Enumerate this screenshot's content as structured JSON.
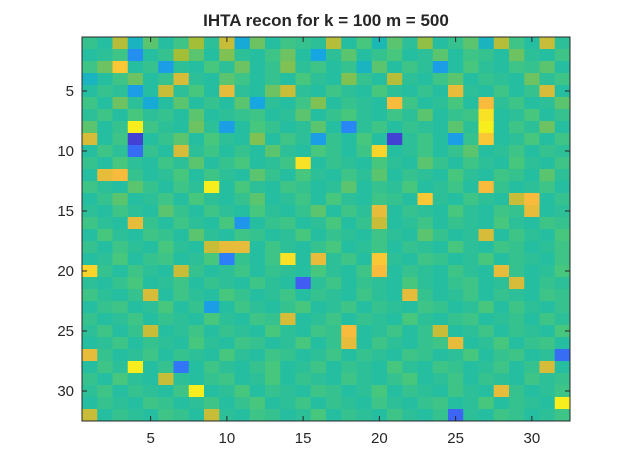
{
  "chart_data": {
    "type": "heatmap",
    "title": "IHTA recon for k = 100 m = 500",
    "xlabel": "",
    "ylabel": "",
    "rows": 32,
    "cols": 32,
    "xlim": [
      0.5,
      32.5
    ],
    "ylim": [
      0.5,
      32.5
    ],
    "y_direction": "reverse",
    "x_ticks": [
      5,
      10,
      15,
      20,
      25,
      30
    ],
    "y_ticks": [
      5,
      10,
      15,
      20,
      25,
      30
    ],
    "x_tick_labels": [
      "5",
      "10",
      "15",
      "20",
      "25",
      "30"
    ],
    "y_tick_labels": [
      "5",
      "10",
      "15",
      "20",
      "25",
      "30"
    ],
    "colormap": "parula",
    "colormap_stops": [
      "#3e26a8",
      "#4653f0",
      "#2d7ff9",
      "#16a6e1",
      "#1cbcaa",
      "#47c67d",
      "#a5be37",
      "#f9bb3c",
      "#f9fb15"
    ],
    "value_range": [
      -1,
      1
    ],
    "grid": false,
    "colorbar": false,
    "values": [
      [
        0.15,
        0.05,
        0.55,
        -0.1,
        0.3,
        0.05,
        0.2,
        0.5,
        0.1,
        0.6,
        -0.2,
        0.35,
        0.05,
        0.2,
        0.15,
        0.1,
        0.55,
        0.05,
        0.25,
        -0.05,
        0.3,
        0.1,
        0.45,
        0.05,
        0.15,
        0.3,
        -0.1,
        0.55,
        0.2,
        0.05,
        0.6,
        0.1
      ],
      [
        0.05,
        0.1,
        0.2,
        -0.4,
        0.05,
        0.15,
        0.5,
        0.3,
        0.05,
        0.4,
        0.1,
        0.05,
        0.2,
        0.35,
        0.05,
        -0.25,
        0.1,
        0.3,
        0.05,
        0.15,
        0.25,
        0.05,
        0.1,
        0.3,
        0.05,
        0.2,
        0.15,
        0.05,
        0.35,
        0.1,
        0.05,
        0.2
      ],
      [
        0.2,
        0.35,
        0.8,
        0.05,
        0.15,
        -0.3,
        0.1,
        0.05,
        0.25,
        0.1,
        0.35,
        0.05,
        0.15,
        0.4,
        0.1,
        0.2,
        0.05,
        0.15,
        -0.1,
        0.3,
        0.05,
        0.2,
        0.1,
        -0.3,
        0.05,
        0.25,
        0.1,
        0.05,
        0.2,
        0.15,
        0.3,
        0.05
      ],
      [
        -0.1,
        0.05,
        0.2,
        0.35,
        0.05,
        0.15,
        0.65,
        0.1,
        0.05,
        0.3,
        0.2,
        0.05,
        0.15,
        0.05,
        0.25,
        0.1,
        0.05,
        0.4,
        0.15,
        0.05,
        0.55,
        0.1,
        0.05,
        0.2,
        0.3,
        0.05,
        0.15,
        0.1,
        0.05,
        0.35,
        0.1,
        0.2
      ],
      [
        0.05,
        0.15,
        0.1,
        -0.3,
        0.05,
        0.6,
        0.1,
        0.25,
        0.05,
        0.7,
        0.1,
        0.05,
        0.35,
        0.6,
        0.1,
        0.05,
        0.2,
        0.1,
        0.05,
        0.25,
        0.1,
        0.05,
        0.15,
        0.05,
        0.7,
        0.1,
        0.05,
        0.2,
        0.05,
        0.15,
        0.65,
        0.05
      ],
      [
        0.2,
        0.05,
        0.35,
        0.1,
        -0.2,
        0.05,
        0.3,
        0.05,
        0.15,
        0.05,
        0.3,
        -0.25,
        0.1,
        0.05,
        0.2,
        0.4,
        0.05,
        0.15,
        0.1,
        0.05,
        0.75,
        0.2,
        0.05,
        0.1,
        0.25,
        0.05,
        0.75,
        0.1,
        0.2,
        0.05,
        0.1,
        0.3
      ],
      [
        0.1,
        0.2,
        0.05,
        0.25,
        0.1,
        0.15,
        0.05,
        0.3,
        0.05,
        0.1,
        0.15,
        0.2,
        0.05,
        0.1,
        0.3,
        0.05,
        0.15,
        0.25,
        0.1,
        0.05,
        0.2,
        0.1,
        0.3,
        0.05,
        0.15,
        0.2,
        0.9,
        0.05,
        0.1,
        0.25,
        0.05,
        0.15
      ],
      [
        0.3,
        0.05,
        0.15,
        0.95,
        0.2,
        0.1,
        0.05,
        0.35,
        0.1,
        -0.3,
        0.05,
        0.25,
        0.15,
        0.05,
        0.1,
        0.3,
        0.05,
        -0.45,
        0.1,
        0.2,
        0.05,
        0.15,
        0.1,
        0.05,
        0.3,
        0.1,
        0.95,
        0.05,
        0.2,
        0.1,
        0.35,
        0.05
      ],
      [
        0.65,
        0.05,
        0.2,
        -0.85,
        0.05,
        0.15,
        0.3,
        0.05,
        0.25,
        0.1,
        0.05,
        0.4,
        0.05,
        0.2,
        0.1,
        -0.3,
        0.15,
        0.05,
        0.25,
        0.05,
        -0.85,
        0.1,
        0.2,
        0.05,
        -0.3,
        0.15,
        0.8,
        0.05,
        0.1,
        0.25,
        0.05,
        0.2
      ],
      [
        0.05,
        0.2,
        0.1,
        -0.6,
        0.15,
        0.05,
        0.65,
        0.1,
        0.2,
        0.05,
        0.15,
        0.05,
        0.3,
        0.1,
        0.05,
        0.25,
        0.15,
        0.05,
        0.2,
        0.85,
        0.05,
        0.1,
        0.2,
        0.05,
        0.15,
        0.3,
        0.05,
        0.1,
        0.2,
        0.05,
        0.15,
        0.1
      ],
      [
        0.15,
        0.05,
        0.25,
        0.1,
        0.05,
        0.2,
        0.1,
        0.3,
        0.05,
        0.15,
        0.25,
        0.05,
        0.1,
        0.2,
        0.9,
        0.05,
        0.15,
        0.1,
        0.05,
        0.25,
        0.1,
        0.05,
        0.3,
        0.15,
        0.05,
        0.2,
        0.1,
        0.05,
        0.25,
        0.1,
        0.05,
        0.2
      ],
      [
        0.05,
        0.7,
        0.75,
        0.15,
        0.05,
        0.1,
        0.25,
        0.05,
        0.2,
        0.1,
        0.05,
        0.3,
        0.15,
        0.05,
        0.25,
        0.1,
        0.05,
        0.2,
        0.1,
        0.3,
        0.05,
        0.15,
        0.1,
        0.05,
        0.25,
        0.1,
        0.05,
        0.2,
        0.15,
        0.05,
        0.3,
        0.1
      ],
      [
        0.2,
        0.1,
        0.05,
        0.3,
        0.15,
        0.05,
        0.2,
        0.1,
        0.95,
        0.05,
        0.25,
        0.1,
        0.05,
        0.2,
        0.15,
        0.05,
        0.1,
        0.3,
        0.05,
        0.15,
        0.1,
        0.25,
        0.05,
        0.1,
        0.2,
        0.05,
        0.75,
        0.15,
        0.05,
        0.1,
        0.2,
        0.05
      ],
      [
        0.05,
        0.15,
        0.3,
        0.05,
        0.1,
        0.2,
        0.05,
        0.25,
        0.1,
        0.05,
        0.15,
        0.3,
        0.05,
        0.1,
        0.2,
        0.05,
        0.25,
        0.1,
        0.05,
        0.2,
        0.15,
        0.05,
        0.8,
        0.1,
        0.05,
        0.2,
        0.1,
        0.05,
        0.6,
        0.75,
        0.05,
        0.15
      ],
      [
        0.1,
        0.05,
        0.2,
        0.1,
        0.05,
        0.3,
        0.15,
        0.05,
        0.2,
        0.1,
        0.05,
        0.25,
        0.1,
        0.05,
        0.15,
        0.3,
        0.05,
        0.2,
        0.1,
        0.7,
        0.05,
        0.15,
        0.1,
        0.05,
        0.25,
        0.1,
        0.05,
        0.2,
        0.15,
        0.7,
        0.05,
        0.1
      ],
      [
        0.2,
        0.1,
        0.05,
        0.7,
        0.15,
        0.05,
        0.2,
        0.1,
        0.05,
        0.25,
        -0.35,
        0.05,
        0.15,
        0.2,
        0.05,
        0.1,
        0.25,
        0.05,
        0.15,
        0.6,
        0.05,
        0.1,
        0.2,
        0.05,
        0.15,
        0.1,
        0.05,
        0.25,
        0.1,
        0.05,
        0.2,
        0.15
      ],
      [
        0.05,
        0.25,
        0.1,
        0.05,
        0.2,
        0.15,
        0.05,
        0.3,
        0.1,
        0.05,
        0.2,
        0.15,
        0.05,
        0.1,
        0.25,
        0.05,
        0.15,
        0.1,
        0.05,
        0.2,
        0.1,
        0.05,
        0.3,
        0.15,
        0.05,
        0.1,
        0.65,
        0.05,
        0.2,
        0.1,
        0.05,
        0.25
      ],
      [
        0.15,
        0.05,
        0.2,
        0.1,
        0.05,
        0.25,
        0.1,
        0.05,
        0.6,
        0.7,
        0.7,
        0.05,
        0.2,
        0.1,
        0.05,
        0.15,
        0.25,
        0.05,
        0.1,
        0.2,
        0.05,
        0.15,
        0.1,
        0.05,
        0.25,
        0.1,
        0.05,
        0.2,
        0.15,
        0.05,
        0.1,
        0.2
      ],
      [
        0.05,
        0.1,
        0.25,
        0.05,
        0.15,
        0.2,
        0.05,
        0.1,
        0.25,
        -0.5,
        0.15,
        0.05,
        0.2,
        0.9,
        0.05,
        0.7,
        0.1,
        0.2,
        0.05,
        0.8,
        0.1,
        0.05,
        0.2,
        0.15,
        0.05,
        0.1,
        0.25,
        0.05,
        0.15,
        0.1,
        0.05,
        0.2
      ],
      [
        0.85,
        0.15,
        0.05,
        0.2,
        0.1,
        0.05,
        0.6,
        0.15,
        0.05,
        0.1,
        0.2,
        0.05,
        0.15,
        0.1,
        0.05,
        0.25,
        0.1,
        0.05,
        0.2,
        0.75,
        0.05,
        0.15,
        0.1,
        0.05,
        0.2,
        0.1,
        0.05,
        0.7,
        0.15,
        0.05,
        0.1,
        0.25
      ],
      [
        0.1,
        0.05,
        0.15,
        0.25,
        0.05,
        0.1,
        0.2,
        0.05,
        0.15,
        0.1,
        0.05,
        0.2,
        0.1,
        0.05,
        -0.7,
        0.1,
        0.2,
        0.05,
        0.15,
        0.1,
        0.05,
        0.25,
        0.1,
        0.05,
        0.15,
        0.2,
        0.05,
        0.1,
        0.65,
        0.05,
        0.15,
        0.1
      ],
      [
        0.2,
        0.1,
        0.05,
        0.15,
        0.65,
        0.05,
        0.2,
        0.1,
        0.05,
        0.25,
        0.15,
        0.05,
        0.1,
        0.2,
        0.05,
        0.15,
        0.1,
        0.05,
        0.2,
        0.1,
        0.05,
        0.7,
        0.15,
        0.05,
        0.1,
        0.2,
        0.05,
        0.15,
        0.1,
        0.05,
        0.2,
        0.15
      ],
      [
        0.05,
        0.15,
        0.2,
        0.05,
        0.1,
        0.25,
        0.05,
        0.15,
        -0.3,
        0.05,
        0.2,
        0.1,
        0.05,
        0.15,
        0.25,
        0.05,
        0.1,
        0.2,
        0.05,
        0.15,
        0.1,
        0.05,
        0.2,
        0.15,
        0.05,
        0.1,
        0.25,
        0.05,
        0.2,
        0.1,
        0.05,
        0.15
      ],
      [
        0.15,
        0.05,
        0.1,
        0.2,
        0.05,
        0.15,
        0.1,
        0.05,
        0.25,
        0.1,
        0.05,
        0.2,
        0.15,
        0.65,
        0.05,
        0.1,
        0.2,
        0.05,
        0.15,
        0.1,
        0.05,
        0.25,
        0.1,
        0.05,
        0.15,
        0.2,
        0.05,
        0.1,
        0.15,
        0.05,
        0.2,
        0.1
      ],
      [
        0.1,
        0.2,
        0.05,
        0.15,
        0.6,
        0.05,
        0.1,
        0.2,
        0.05,
        0.15,
        0.1,
        0.05,
        0.25,
        0.1,
        0.05,
        0.2,
        0.15,
        0.75,
        0.05,
        0.1,
        0.2,
        0.05,
        0.15,
        0.6,
        0.05,
        0.1,
        0.2,
        0.05,
        0.15,
        0.1,
        0.05,
        0.25
      ],
      [
        0.05,
        0.1,
        0.2,
        0.05,
        0.15,
        0.1,
        0.05,
        0.25,
        0.1,
        0.05,
        0.2,
        0.15,
        0.05,
        0.1,
        0.25,
        0.05,
        0.15,
        0.7,
        0.05,
        0.2,
        0.1,
        0.05,
        0.15,
        0.2,
        0.7,
        0.05,
        0.1,
        0.25,
        0.05,
        0.15,
        0.2,
        0.05
      ],
      [
        0.7,
        0.15,
        0.05,
        0.1,
        0.2,
        0.05,
        0.15,
        0.1,
        0.05,
        0.25,
        0.1,
        0.05,
        0.2,
        0.15,
        0.05,
        0.1,
        0.2,
        0.05,
        0.15,
        0.1,
        0.05,
        0.2,
        0.15,
        0.05,
        0.1,
        0.25,
        0.05,
        0.15,
        0.2,
        0.05,
        0.1,
        -0.6
      ],
      [
        0.05,
        0.2,
        0.1,
        0.95,
        0.05,
        0.15,
        -0.55,
        0.05,
        0.2,
        0.1,
        0.05,
        0.15,
        0.25,
        0.05,
        0.1,
        0.2,
        0.05,
        0.15,
        0.1,
        0.05,
        0.25,
        0.1,
        0.05,
        0.2,
        0.15,
        0.05,
        0.1,
        0.2,
        0.05,
        0.15,
        0.65,
        0.05
      ],
      [
        0.15,
        0.05,
        0.25,
        0.1,
        0.05,
        0.6,
        0.1,
        0.05,
        0.15,
        0.2,
        0.05,
        0.1,
        0.25,
        0.05,
        0.15,
        0.1,
        0.05,
        0.2,
        0.1,
        0.05,
        0.15,
        0.25,
        0.05,
        0.1,
        0.2,
        0.05,
        0.15,
        0.1,
        0.05,
        0.2,
        0.1,
        0.15
      ],
      [
        0.1,
        0.2,
        0.05,
        0.15,
        0.1,
        0.05,
        0.2,
        0.95,
        0.05,
        0.1,
        0.25,
        0.05,
        0.15,
        0.1,
        0.05,
        0.2,
        0.15,
        0.05,
        0.1,
        0.25,
        0.05,
        0.15,
        0.1,
        0.05,
        0.2,
        0.1,
        0.05,
        0.7,
        0.15,
        0.05,
        0.1,
        0.2
      ],
      [
        0.05,
        0.15,
        0.1,
        0.05,
        0.2,
        0.15,
        0.05,
        0.1,
        0.2,
        0.05,
        0.15,
        0.25,
        0.05,
        0.1,
        0.2,
        0.05,
        0.15,
        0.1,
        0.05,
        0.2,
        0.1,
        0.05,
        0.15,
        0.2,
        0.05,
        0.1,
        0.25,
        0.05,
        0.15,
        0.1,
        0.05,
        0.95
      ],
      [
        0.6,
        0.05,
        0.15,
        0.1,
        0.05,
        0.2,
        0.15,
        0.05,
        0.6,
        0.1,
        0.05,
        0.2,
        0.15,
        0.05,
        0.1,
        0.25,
        0.05,
        0.15,
        0.1,
        0.05,
        0.2,
        0.1,
        0.05,
        0.15,
        -0.65,
        0.1,
        0.05,
        0.2,
        0.15,
        0.05,
        0.1,
        0.2
      ]
    ]
  }
}
